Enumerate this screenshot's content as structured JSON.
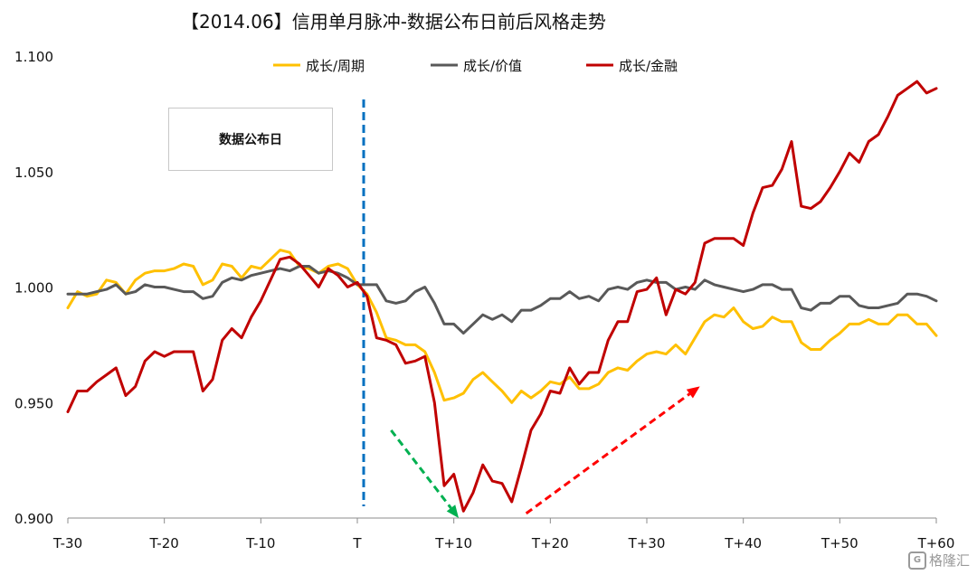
{
  "title": "【2014.06】信用单月脉冲-数据公布日前后风格走势",
  "annotation_box": "数据公布日",
  "watermark": "格隆汇",
  "colors": {
    "growth_cyclical": "#FFC000",
    "growth_value": "#595959",
    "growth_financial": "#C00000",
    "vline": "#0070C0",
    "green_arrow": "#00B050",
    "red_arrow": "#FF0000"
  },
  "chart_data": {
    "type": "line",
    "title": "【2014.06】信用单月脉冲-数据公布日前后风格走势",
    "xlabel": "",
    "ylabel": "",
    "x_range": [
      -30,
      60
    ],
    "ylim": [
      0.9,
      1.1
    ],
    "y_ticks": [
      "0.900",
      "0.950",
      "1.000",
      "1.050",
      "1.100"
    ],
    "x_ticks": [
      {
        "label": "T-30",
        "x": -30
      },
      {
        "label": "T-20",
        "x": -20
      },
      {
        "label": "T-10",
        "x": -10
      },
      {
        "label": "T",
        "x": 0
      },
      {
        "label": "T+10",
        "x": 10
      },
      {
        "label": "T+20",
        "x": 20
      },
      {
        "label": "T+30",
        "x": 30
      },
      {
        "label": "T+40",
        "x": 40
      },
      {
        "label": "T+50",
        "x": 50
      },
      {
        "label": "T+60",
        "x": 60
      }
    ],
    "grid": false,
    "legend_position": "top",
    "vline_x": 0,
    "series": [
      {
        "name": "成长/周期",
        "values": [
          0.991,
          0.998,
          0.996,
          0.997,
          1.003,
          1.002,
          0.997,
          1.003,
          1.006,
          1.007,
          1.007,
          1.008,
          1.01,
          1.009,
          1.001,
          1.003,
          1.01,
          1.009,
          1.004,
          1.009,
          1.008,
          1.012,
          1.016,
          1.015,
          1.009,
          1.008,
          1.006,
          1.009,
          1.01,
          1.008,
          1.001,
          0.997,
          0.989,
          0.978,
          0.977,
          0.975,
          0.975,
          0.972,
          0.963,
          0.951,
          0.952,
          0.954,
          0.96,
          0.963,
          0.959,
          0.955,
          0.95,
          0.955,
          0.952,
          0.955,
          0.959,
          0.958,
          0.961,
          0.956,
          0.956,
          0.958,
          0.963,
          0.965,
          0.964,
          0.968,
          0.971,
          0.972,
          0.971,
          0.975,
          0.971,
          0.978,
          0.985,
          0.988,
          0.987,
          0.991,
          0.985,
          0.982,
          0.983,
          0.987,
          0.985,
          0.985,
          0.976,
          0.973,
          0.973,
          0.977,
          0.98,
          0.984,
          0.984,
          0.986,
          0.984,
          0.984,
          0.988,
          0.988,
          0.984,
          0.984,
          0.979
        ]
      },
      {
        "name": "成长/价值",
        "values": [
          0.997,
          0.997,
          0.997,
          0.998,
          0.999,
          1.001,
          0.997,
          0.998,
          1.001,
          1.0,
          1.0,
          0.999,
          0.998,
          0.998,
          0.995,
          0.996,
          1.002,
          1.004,
          1.003,
          1.005,
          1.006,
          1.007,
          1.008,
          1.007,
          1.009,
          1.009,
          1.006,
          1.007,
          1.006,
          1.004,
          1.001,
          1.001,
          1.001,
          0.994,
          0.993,
          0.994,
          0.998,
          1.0,
          0.993,
          0.984,
          0.984,
          0.98,
          0.984,
          0.988,
          0.986,
          0.988,
          0.985,
          0.99,
          0.99,
          0.992,
          0.995,
          0.995,
          0.998,
          0.995,
          0.996,
          0.994,
          0.999,
          1.0,
          0.999,
          1.002,
          1.003,
          1.002,
          1.002,
          0.999,
          1.0,
          0.999,
          1.003,
          1.001,
          1.0,
          0.999,
          0.998,
          0.999,
          1.001,
          1.001,
          0.999,
          0.999,
          0.991,
          0.99,
          0.993,
          0.993,
          0.996,
          0.996,
          0.992,
          0.991,
          0.991,
          0.992,
          0.993,
          0.997,
          0.997,
          0.996,
          0.994
        ]
      },
      {
        "name": "成长/金融",
        "values": [
          0.946,
          0.955,
          0.955,
          0.959,
          0.962,
          0.965,
          0.953,
          0.957,
          0.968,
          0.972,
          0.97,
          0.972,
          0.972,
          0.972,
          0.955,
          0.96,
          0.977,
          0.982,
          0.978,
          0.987,
          0.994,
          1.003,
          1.012,
          1.013,
          1.01,
          1.005,
          1.0,
          1.008,
          1.005,
          1.0,
          1.002,
          0.996,
          0.978,
          0.977,
          0.975,
          0.967,
          0.968,
          0.97,
          0.95,
          0.914,
          0.919,
          0.903,
          0.911,
          0.923,
          0.916,
          0.915,
          0.907,
          0.922,
          0.938,
          0.945,
          0.955,
          0.954,
          0.965,
          0.958,
          0.963,
          0.963,
          0.977,
          0.985,
          0.985,
          0.998,
          0.999,
          1.004,
          0.988,
          0.999,
          0.997,
          1.002,
          1.019,
          1.021,
          1.021,
          1.021,
          1.018,
          1.032,
          1.043,
          1.044,
          1.051,
          1.063,
          1.035,
          1.034,
          1.037,
          1.043,
          1.05,
          1.058,
          1.054,
          1.063,
          1.066,
          1.074,
          1.083,
          1.086,
          1.089,
          1.084,
          1.086
        ]
      }
    ],
    "arrows": [
      {
        "color": "green",
        "from": [
          3.5,
          0.938
        ],
        "to": [
          10.5,
          0.9
        ]
      },
      {
        "color": "red",
        "from": [
          17.5,
          0.902
        ],
        "to": [
          35.5,
          0.957
        ]
      }
    ]
  }
}
